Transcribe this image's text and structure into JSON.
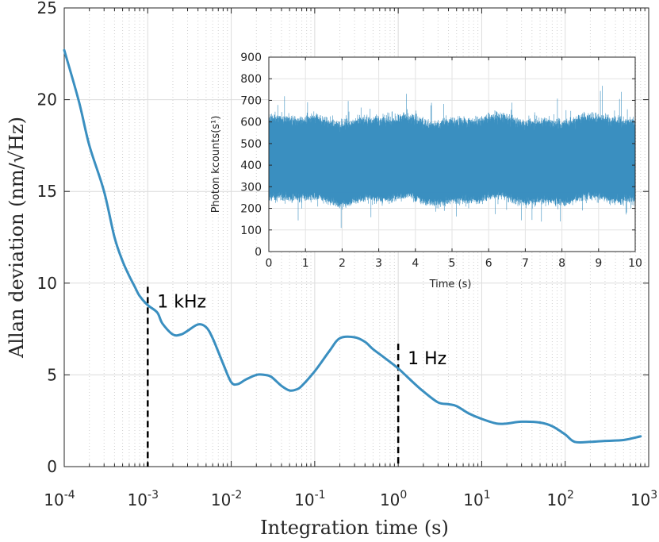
{
  "chart_data": [
    {
      "type": "line",
      "xscale": "log",
      "xlim": [
        0.0001,
        1000
      ],
      "ylim": [
        0,
        25
      ],
      "xlabel": "Integration time (s)",
      "ylabel": "Allan deviation (nm/√Hz)",
      "xticks": [
        0.0001,
        0.001,
        0.01,
        0.1,
        1,
        10,
        100,
        1000
      ],
      "xtick_labels": [
        {
          "base": "10",
          "exp": "-4"
        },
        {
          "base": "10",
          "exp": "-3"
        },
        {
          "base": "10",
          "exp": "-2"
        },
        {
          "base": "10",
          "exp": "-1"
        },
        {
          "base": "10",
          "exp": "0"
        },
        {
          "base": "10",
          "exp": "1"
        },
        {
          "base": "10",
          "exp": "2"
        },
        {
          "base": "10",
          "exp": "3"
        }
      ],
      "yticks": [
        0,
        5,
        10,
        15,
        20,
        25
      ],
      "grid": true,
      "line_color": "#3a8fc0",
      "series": [
        {
          "x": [
            0.0001,
            0.00015,
            0.0002,
            0.0003,
            0.0004,
            0.0005,
            0.0006,
            0.0007,
            0.0008,
            0.001,
            0.0013,
            0.0015,
            0.002,
            0.0025,
            0.003,
            0.004,
            0.005,
            0.006,
            0.008,
            0.01,
            0.012,
            0.015,
            0.02,
            0.025,
            0.03,
            0.04,
            0.05,
            0.06,
            0.07,
            0.1,
            0.15,
            0.2,
            0.3,
            0.4,
            0.5,
            0.7,
            1,
            1.5,
            2,
            3,
            4,
            5,
            7,
            10,
            15,
            20,
            30,
            50,
            70,
            100,
            130,
            200,
            300,
            500,
            800
          ],
          "y": [
            22.7,
            19.9,
            17.5,
            15.0,
            12.5,
            11.2,
            10.4,
            9.8,
            9.3,
            8.8,
            8.4,
            7.8,
            7.2,
            7.2,
            7.4,
            7.75,
            7.6,
            7.0,
            5.6,
            4.6,
            4.5,
            4.75,
            5.0,
            5.0,
            4.9,
            4.4,
            4.15,
            4.2,
            4.4,
            5.2,
            6.3,
            7.0,
            7.05,
            6.8,
            6.4,
            5.9,
            5.35,
            4.6,
            4.1,
            3.5,
            3.4,
            3.3,
            2.9,
            2.6,
            2.35,
            2.35,
            2.45,
            2.4,
            2.2,
            1.75,
            1.35,
            1.35,
            1.4,
            1.45,
            1.65
          ]
        }
      ],
      "annotations": [
        {
          "text": "1 kHz",
          "x": 0.001
        },
        {
          "text": "1 Hz",
          "x": 1
        }
      ]
    },
    {
      "type": "line",
      "xlabel": "Time (s)",
      "ylabel": "Photon kcounts(s¹)",
      "xlim": [
        0,
        10
      ],
      "ylim": [
        0,
        900
      ],
      "xticks": [
        0,
        1,
        2,
        3,
        4,
        5,
        6,
        7,
        8,
        9,
        10
      ],
      "yticks": [
        0,
        100,
        200,
        300,
        400,
        500,
        600,
        700,
        800,
        900
      ],
      "grid": true,
      "line_color": "#3a8fc0",
      "signal": {
        "mean": 365,
        "lower_extent": 125,
        "upper_extent": 620,
        "min": 60,
        "max": 870
      }
    }
  ]
}
